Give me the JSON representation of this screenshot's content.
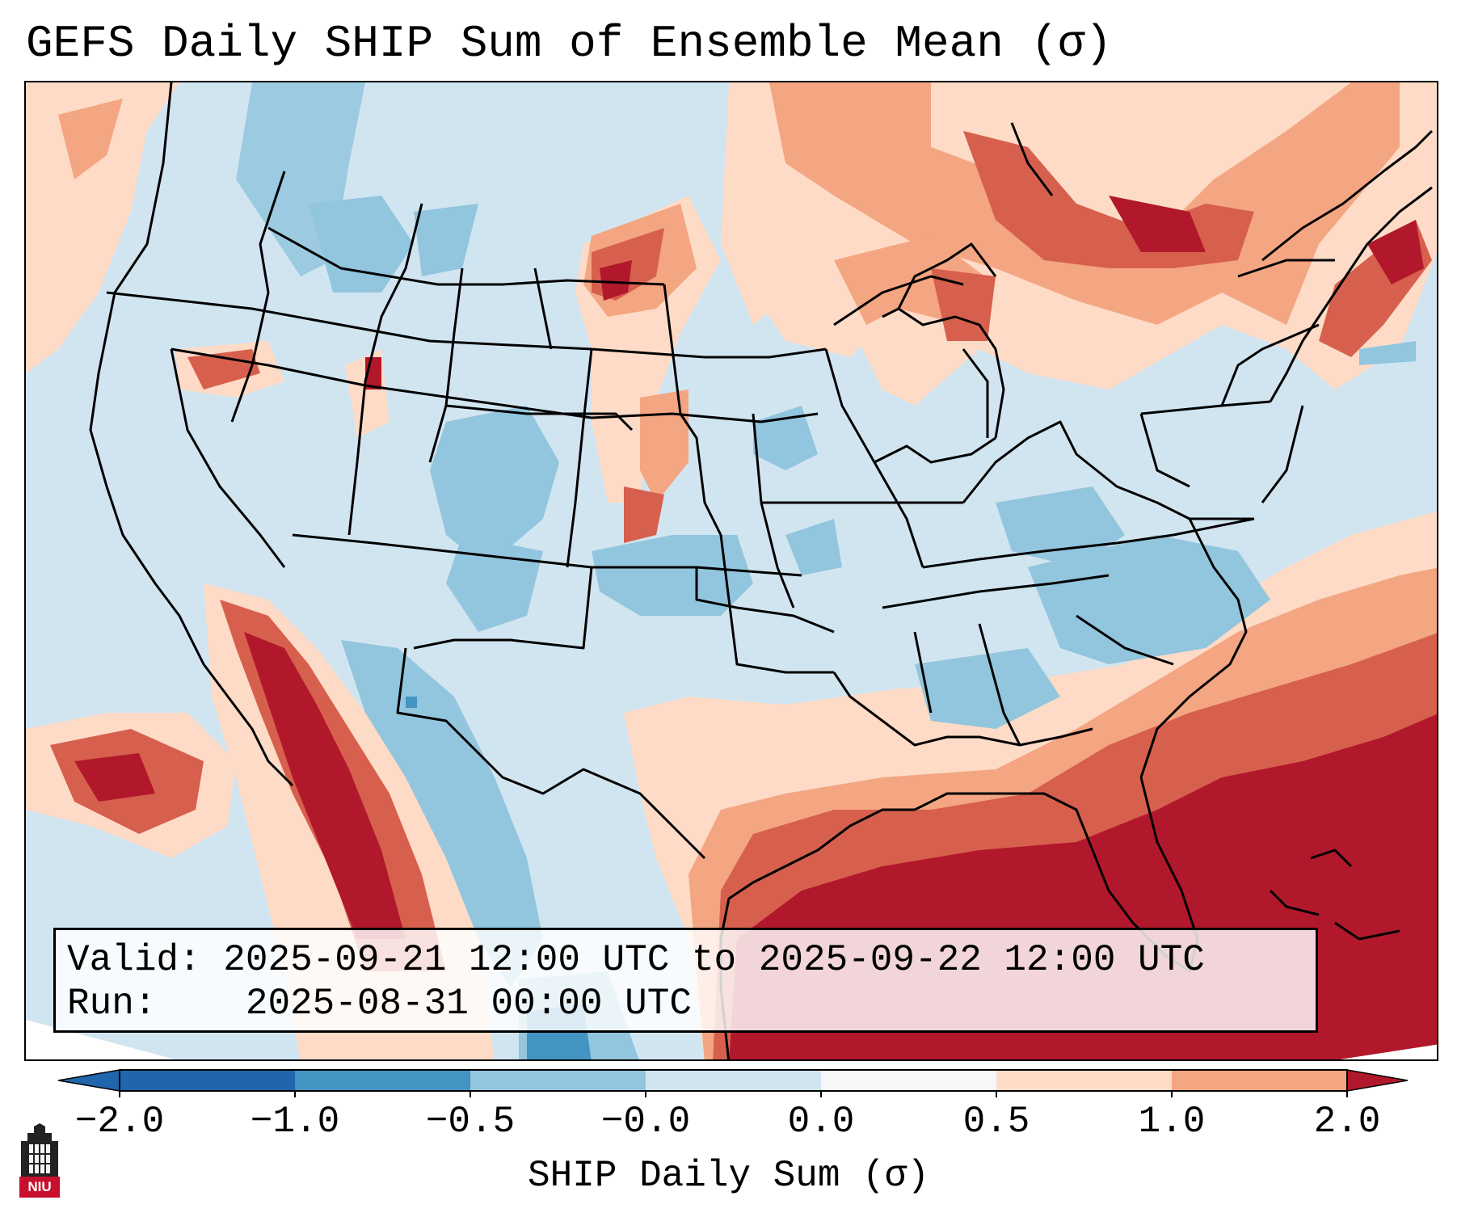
{
  "title": "GEFS Daily SHIP Sum of Ensemble Mean (σ)",
  "info": {
    "valid_label": "Valid:",
    "valid_value": "2025-09-21 12:00 UTC to 2025-09-22 12:00 UTC",
    "run_label": "Run:",
    "run_value": "2025-08-31 00:00 UTC"
  },
  "colorbar": {
    "label": "SHIP Daily Sum (σ)",
    "ticks": [
      "−2.0",
      "−1.0",
      "−0.5",
      "−0.0",
      "0.0",
      "0.5",
      "1.0",
      "2.0"
    ],
    "colors": [
      "#2166ac",
      "#4393c3",
      "#92c5de",
      "#d1e5f0",
      "#f7f7f7",
      "#fddbc7",
      "#f4a582",
      "#d6604d",
      "#b2182b"
    ]
  },
  "logo": {
    "text": "NIU",
    "icon": "university-tower-icon"
  }
}
